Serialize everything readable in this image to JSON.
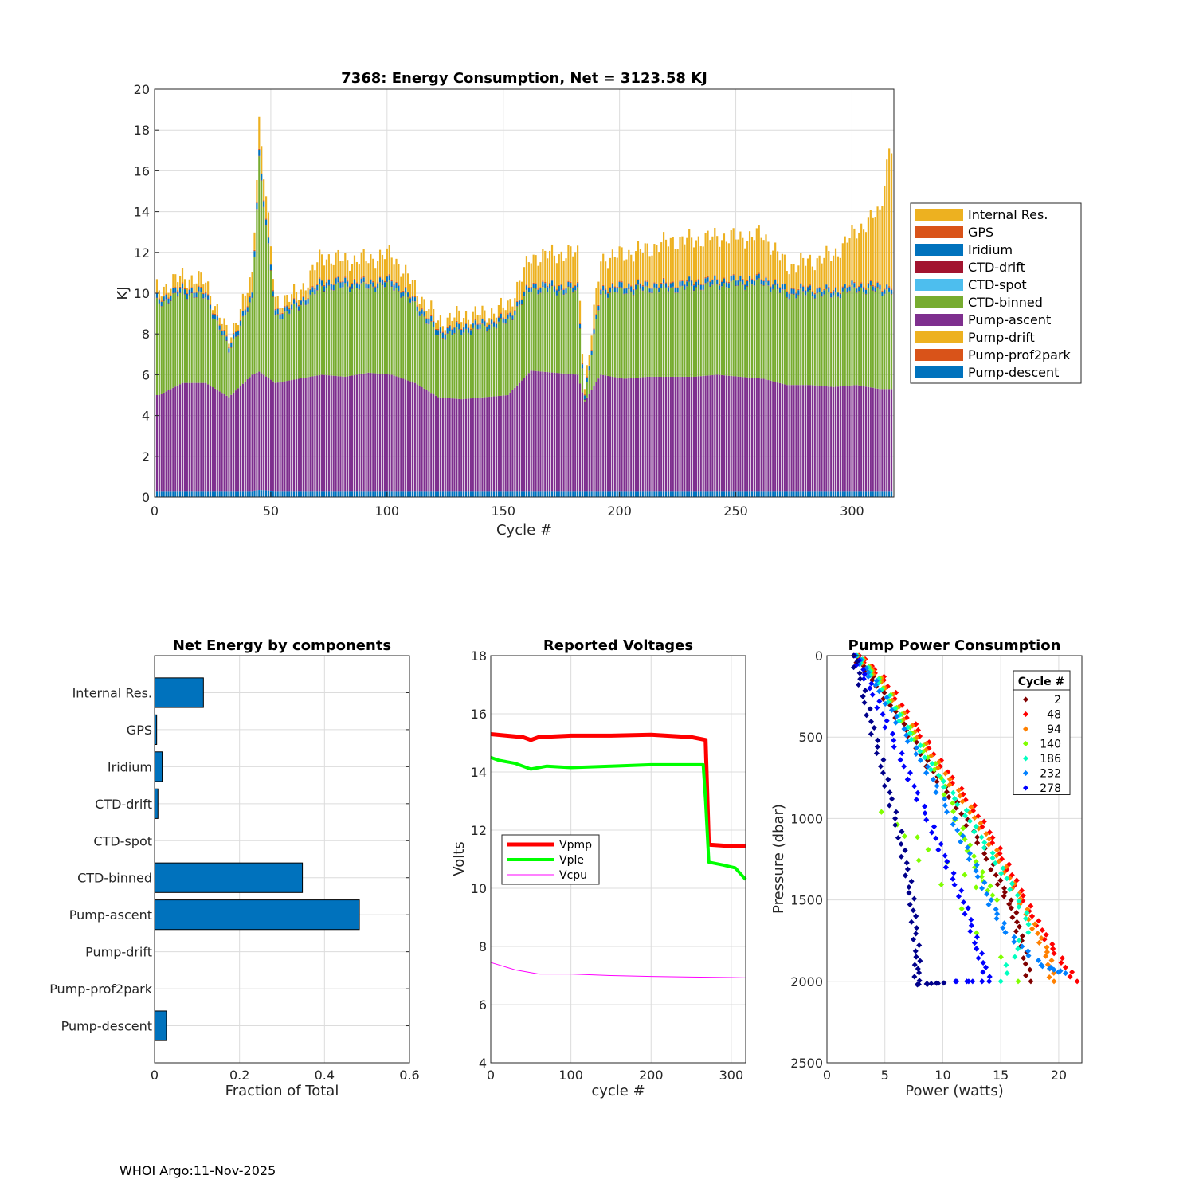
{
  "footer": "WHOI Argo:11-Nov-2025",
  "chart_data": [
    {
      "type": "bar",
      "stacked": true,
      "title": "7368: Energy Consumption,  Net = 3123.58 KJ",
      "xlabel": "Cycle #",
      "ylabel": "KJ",
      "xlim": [
        0,
        318
      ],
      "ylim": [
        0,
        20
      ],
      "xticks": [
        0,
        50,
        100,
        150,
        200,
        250,
        300
      ],
      "yticks": [
        0,
        2,
        4,
        6,
        8,
        10,
        12,
        14,
        16,
        18,
        20
      ],
      "legend_placement": "right",
      "legend": [
        "Internal Res.",
        "GPS",
        "Iridium",
        "CTD-drift",
        "CTD-spot",
        "CTD-binned",
        "Pump-ascent",
        "Pump-drift",
        "Pump-prof2park",
        "Pump-descent"
      ],
      "colors": {
        "Internal Res.": "#EDB120",
        "GPS": "#D95319",
        "Iridium": "#0072BD",
        "CTD-drift": "#A2142F",
        "CTD-spot": "#4DBEEE",
        "CTD-binned": "#77AC30",
        "Pump-ascent": "#7E2F8E",
        "Pump-drift": "#EDB120",
        "Pump-prof2park": "#D95319",
        "Pump-descent": "#0072BD"
      },
      "x": [
        2,
        12,
        22,
        32,
        42,
        45,
        52,
        62,
        72,
        82,
        92,
        102,
        112,
        122,
        132,
        142,
        152,
        162,
        172,
        182,
        185,
        192,
        202,
        212,
        222,
        232,
        242,
        252,
        262,
        272,
        282,
        292,
        302,
        312,
        316
      ],
      "series": [
        {
          "name": "Pump-descent",
          "values": [
            0.3,
            0.3,
            0.3,
            0.3,
            0.3,
            0.35,
            0.3,
            0.3,
            0.3,
            0.3,
            0.3,
            0.3,
            0.3,
            0.3,
            0.3,
            0.3,
            0.3,
            0.3,
            0.3,
            0.3,
            0.3,
            0.3,
            0.3,
            0.3,
            0.3,
            0.3,
            0.3,
            0.3,
            0.3,
            0.3,
            0.3,
            0.3,
            0.3,
            0.3,
            0.3
          ]
        },
        {
          "name": "Pump-ascent",
          "values": [
            4.7,
            5.3,
            5.3,
            4.6,
            5.7,
            5.8,
            5.3,
            5.5,
            5.7,
            5.6,
            5.8,
            5.7,
            5.3,
            4.6,
            4.5,
            4.6,
            4.7,
            5.9,
            5.8,
            5.7,
            4.4,
            5.7,
            5.5,
            5.6,
            5.6,
            5.6,
            5.7,
            5.6,
            5.5,
            5.2,
            5.2,
            5.1,
            5.2,
            5.0,
            5.0
          ]
        },
        {
          "name": "CTD-binned",
          "values": [
            4.5,
            4.4,
            4.2,
            2.3,
            3.6,
            10.5,
            3.2,
            3.5,
            4.3,
            4.4,
            4.2,
            4.4,
            3.8,
            3.0,
            3.3,
            3.4,
            3.6,
            4.0,
            4.0,
            4.1,
            0.1,
            4.0,
            4.3,
            4.3,
            4.3,
            4.4,
            4.4,
            4.5,
            4.7,
            4.4,
            4.5,
            4.5,
            4.7,
            4.8,
            4.8
          ]
        },
        {
          "name": "CTD-drift",
          "values": [
            0.02,
            0.02,
            0.02,
            0.02,
            0.02,
            0.02,
            0.02,
            0.02,
            0.02,
            0.02,
            0.02,
            0.02,
            0.02,
            0.02,
            0.02,
            0.02,
            0.02,
            0.02,
            0.02,
            0.02,
            0.02,
            0.02,
            0.02,
            0.02,
            0.02,
            0.02,
            0.02,
            0.02,
            0.02,
            0.02,
            0.02,
            0.02,
            0.02,
            0.02,
            0.02
          ]
        },
        {
          "name": "Iridium",
          "values": [
            0.2,
            0.25,
            0.2,
            0.2,
            0.25,
            0.3,
            0.25,
            0.2,
            0.25,
            0.25,
            0.2,
            0.25,
            0.2,
            0.25,
            0.25,
            0.2,
            0.2,
            0.2,
            0.25,
            0.2,
            0.2,
            0.2,
            0.25,
            0.2,
            0.2,
            0.25,
            0.2,
            0.25,
            0.2,
            0.25,
            0.2,
            0.2,
            0.2,
            0.2,
            0.2
          ]
        },
        {
          "name": "GPS",
          "values": [
            0.05,
            0.05,
            0.05,
            0.05,
            0.05,
            0.05,
            0.05,
            0.05,
            0.05,
            0.05,
            0.05,
            0.05,
            0.05,
            0.05,
            0.05,
            0.05,
            0.05,
            0.05,
            0.05,
            0.05,
            0.05,
            0.05,
            0.05,
            0.05,
            0.05,
            0.05,
            0.05,
            0.05,
            0.05,
            0.05,
            0.05,
            0.05,
            0.05,
            0.05,
            0.05
          ]
        },
        {
          "name": "Internal Res.",
          "values": [
            0.4,
            0.5,
            0.5,
            0.3,
            0.8,
            1.5,
            0.5,
            0.4,
            1.2,
            1.0,
            1.1,
            1.2,
            0.6,
            0.4,
            0.5,
            0.4,
            0.5,
            1.3,
            1.5,
            1.6,
            0.3,
            1.4,
            1.5,
            1.7,
            2.1,
            2.0,
            2.1,
            2.0,
            2.1,
            1.1,
            1.3,
            1.7,
            2.6,
            3.6,
            6.8
          ]
        }
      ]
    },
    {
      "type": "bar",
      "orientation": "horizontal",
      "title": "Net Energy by components",
      "xlabel": "Fraction of Total",
      "xlim": [
        0,
        0.6
      ],
      "xticks": [
        "0",
        "0.2",
        "0.4",
        "0.6"
      ],
      "categories": [
        "Internal Res.",
        "GPS",
        "Iridium",
        "CTD-drift",
        "CTD-spot",
        "CTD-binned",
        "Pump-ascent",
        "Pump-drift",
        "Pump-prof2park",
        "Pump-descent"
      ],
      "values": [
        0.115,
        0.005,
        0.018,
        0.008,
        0.0,
        0.348,
        0.482,
        0.0,
        0.0,
        0.028
      ],
      "color": "#0072BD"
    },
    {
      "type": "line",
      "title": "Reported Voltages",
      "xlabel": "cycle #",
      "ylabel": "Volts",
      "xlim": [
        0,
        318
      ],
      "ylim": [
        4,
        18
      ],
      "xticks": [
        0,
        100,
        200,
        300
      ],
      "yticks": [
        4,
        6,
        8,
        10,
        12,
        14,
        16,
        18
      ],
      "legend_placement": "middle-left",
      "series": [
        {
          "name": "Vpmp",
          "color": "#FF0000",
          "width": 5,
          "points": [
            [
              0,
              15.3
            ],
            [
              20,
              15.25
            ],
            [
              40,
              15.2
            ],
            [
              50,
              15.1
            ],
            [
              60,
              15.2
            ],
            [
              100,
              15.25
            ],
            [
              150,
              15.25
            ],
            [
              200,
              15.28
            ],
            [
              250,
              15.2
            ],
            [
              268,
              15.1
            ],
            [
              272,
              11.5
            ],
            [
              300,
              11.45
            ],
            [
              318,
              11.45
            ]
          ]
        },
        {
          "name": "Vple",
          "color": "#00FF00",
          "width": 4,
          "points": [
            [
              0,
              14.5
            ],
            [
              10,
              14.4
            ],
            [
              30,
              14.3
            ],
            [
              50,
              14.1
            ],
            [
              70,
              14.2
            ],
            [
              100,
              14.15
            ],
            [
              150,
              14.2
            ],
            [
              200,
              14.25
            ],
            [
              250,
              14.25
            ],
            [
              265,
              14.25
            ],
            [
              268,
              13.0
            ],
            [
              272,
              10.9
            ],
            [
              290,
              10.8
            ],
            [
              305,
              10.7
            ],
            [
              318,
              10.3
            ]
          ]
        },
        {
          "name": "Vcpu",
          "color": "#FF00FF",
          "width": 1,
          "points": [
            [
              0,
              7.45
            ],
            [
              30,
              7.2
            ],
            [
              60,
              7.05
            ],
            [
              100,
              7.05
            ],
            [
              150,
              7.0
            ],
            [
              200,
              6.97
            ],
            [
              250,
              6.95
            ],
            [
              300,
              6.93
            ],
            [
              318,
              6.92
            ]
          ]
        }
      ]
    },
    {
      "type": "scatter",
      "title": "Pump Power Consumption",
      "xlabel": "Power (watts)",
      "ylabel": "Pressure (dbar)",
      "xlim": [
        0,
        22
      ],
      "ylim": [
        2500,
        0
      ],
      "xticks": [
        0,
        5,
        10,
        15,
        20
      ],
      "yticks": [
        0,
        500,
        1000,
        1500,
        2000,
        2500
      ],
      "legend_title": "Cycle #",
      "legend_placement": "top-right",
      "series": [
        {
          "name": "2",
          "color": "#800000",
          "points": [
            [
              2.3,
              0
            ],
            [
              4.0,
              150
            ],
            [
              6.5,
              420
            ],
            [
              8.8,
              680
            ],
            [
              11.0,
              900
            ],
            [
              13.2,
              1150
            ],
            [
              14.8,
              1380
            ],
            [
              16.0,
              1550
            ],
            [
              16.8,
              1750
            ],
            [
              17.5,
              2000
            ]
          ]
        },
        {
          "name": "48",
          "color": "#FF0000",
          "points": [
            [
              2.8,
              0
            ],
            [
              5.0,
              150
            ],
            [
              7.5,
              420
            ],
            [
              10.0,
              680
            ],
            [
              12.5,
              920
            ],
            [
              14.5,
              1150
            ],
            [
              16.2,
              1380
            ],
            [
              17.8,
              1600
            ],
            [
              19.5,
              1800
            ],
            [
              21.5,
              2000
            ]
          ]
        },
        {
          "name": "94",
          "color": "#FF8000",
          "points": [
            [
              2.7,
              0
            ],
            [
              4.8,
              160
            ],
            [
              7.2,
              430
            ],
            [
              9.8,
              690
            ],
            [
              12.2,
              930
            ],
            [
              14.2,
              1160
            ],
            [
              16.0,
              1400
            ],
            [
              17.5,
              1620
            ],
            [
              19.0,
              1820
            ],
            [
              19.5,
              2000
            ]
          ]
        },
        {
          "name": "140",
          "color": "#80FF00",
          "points": [
            [
              2.6,
              0
            ],
            [
              4.6,
              160
            ],
            [
              7.0,
              440
            ],
            [
              9.5,
              700
            ],
            [
              11.5,
              1060
            ],
            [
              13.0,
              1300
            ],
            [
              14.5,
              1500
            ],
            [
              4.8,
              960
            ],
            [
              16.5,
              2000
            ]
          ]
        },
        {
          "name": "186",
          "color": "#00FFC0",
          "points": [
            [
              2.6,
              0
            ],
            [
              4.5,
              170
            ],
            [
              6.8,
              440
            ],
            [
              9.2,
              700
            ],
            [
              11.8,
              950
            ],
            [
              13.8,
              1180
            ],
            [
              15.8,
              1400
            ],
            [
              17.5,
              1650
            ],
            [
              15.0,
              2000
            ]
          ]
        },
        {
          "name": "232",
          "color": "#0080FF",
          "points": [
            [
              2.5,
              0
            ],
            [
              4.3,
              180
            ],
            [
              6.5,
              450
            ],
            [
              8.8,
              720
            ],
            [
              10.8,
              1000
            ],
            [
              12.5,
              1250
            ],
            [
              14.0,
              1500
            ],
            [
              15.5,
              1700
            ],
            [
              18.5,
              1900
            ],
            [
              20.5,
              1950
            ]
          ]
        },
        {
          "name": "278",
          "color": "#0000FF",
          "points": [
            [
              2.4,
              0
            ],
            [
              3.8,
              200
            ],
            [
              5.5,
              480
            ],
            [
              7.2,
              760
            ],
            [
              9.0,
              1050
            ],
            [
              10.5,
              1300
            ],
            [
              12.0,
              1550
            ],
            [
              13.0,
              1800
            ],
            [
              14.0,
              2000
            ],
            [
              11.0,
              2000
            ]
          ]
        },
        {
          "name": "",
          "color": "#00008B",
          "points": [
            [
              2.3,
              0
            ],
            [
              3.2,
              250
            ],
            [
              4.2,
              520
            ],
            [
              5.2,
              800
            ],
            [
              6.2,
              1080
            ],
            [
              7.0,
              1350
            ],
            [
              7.5,
              1600
            ],
            [
              7.8,
              1850
            ],
            [
              7.8,
              2020
            ],
            [
              10.0,
              2010
            ]
          ]
        }
      ]
    }
  ]
}
